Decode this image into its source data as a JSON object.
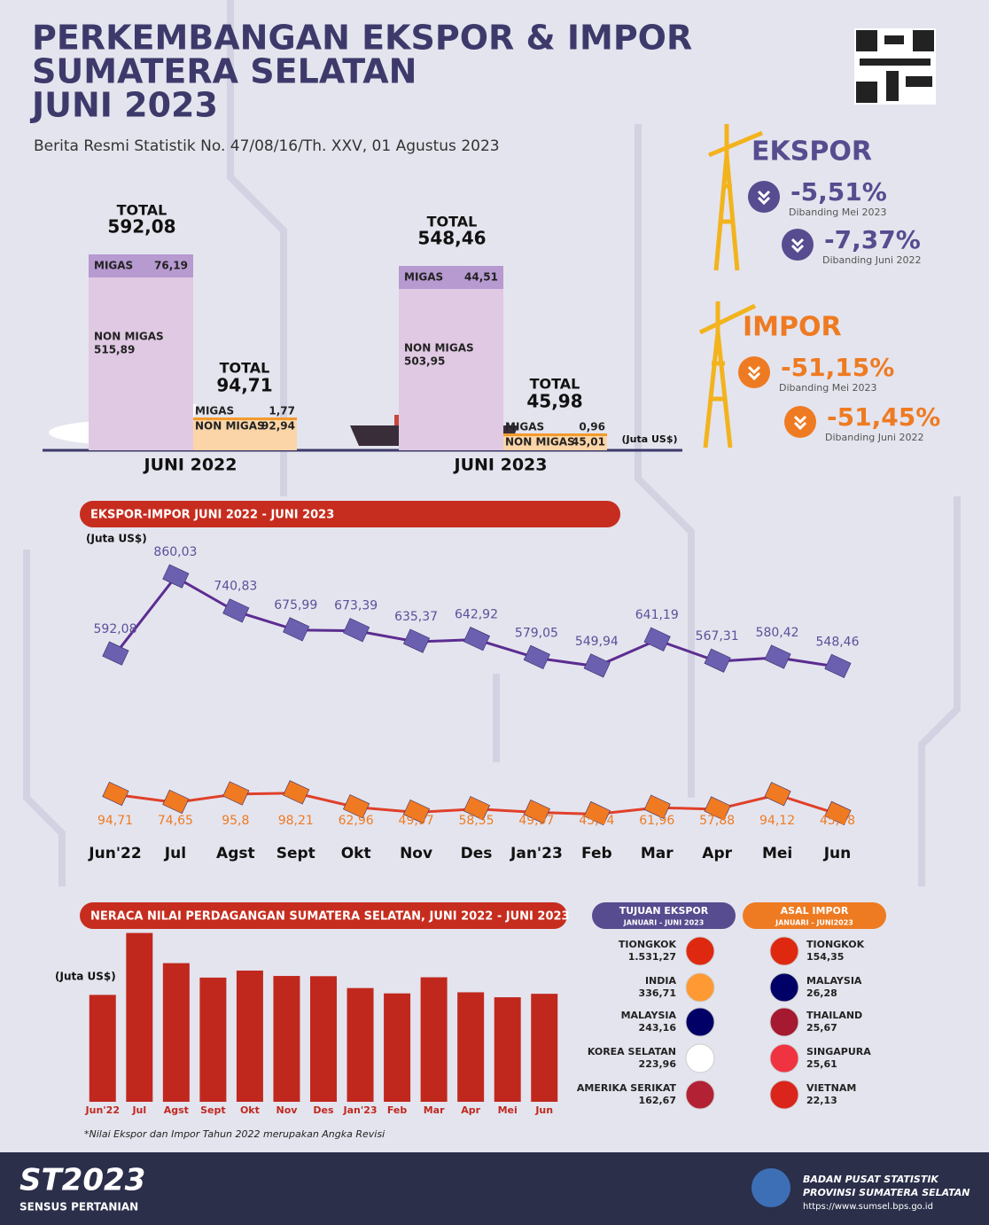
{
  "header": {
    "title": [
      "PERKEMBANGAN EKSPOR & IMPOR",
      "SUMATERA SELATAN",
      "JUNI 2023"
    ],
    "subtitle": "Berita Resmi Statistik No. 47/08/16/Th. XXV, 01 Agustus 2023"
  },
  "summary": {
    "labels": {
      "total": "TOTAL",
      "migas": "MIGAS",
      "nonmigas": "NON MIGAS"
    },
    "unit": "(Juta US$)",
    "periods": [
      {
        "label": "JUNI 2022",
        "ekspor": {
          "total": "592,08",
          "migas": "76,19",
          "nonmigas": "515,89"
        },
        "impor": {
          "total": "94,71",
          "migas": "1,77",
          "nonmigas": "92,94"
        }
      },
      {
        "label": "JUNI 2023",
        "ekspor": {
          "total": "548,46",
          "migas": "44,51",
          "nonmigas": "503,95"
        },
        "impor": {
          "total": "45,98",
          "migas": "0,96",
          "nonmigas": "45,01"
        }
      }
    ]
  },
  "changes": [
    {
      "title": "EKSPOR",
      "color": "#564c8f",
      "items": [
        {
          "value": "-5,51%",
          "note": "Dibanding Mei 2023"
        },
        {
          "value": "-7,37%",
          "note": "Dibanding Juni 2022"
        }
      ]
    },
    {
      "title": "IMPOR",
      "color": "#ee7b22",
      "items": [
        {
          "value": "-51,15%",
          "note": "Dibanding Mei 2023"
        },
        {
          "value": "-51,45%",
          "note": "Dibanding Juni 2022"
        }
      ]
    }
  ],
  "chart_data": [
    {
      "type": "line",
      "title": "EKSPOR-IMPOR JUNI 2022 - JUNI 2023",
      "y_label": "(Juta US$)",
      "categories": [
        "Jun'22",
        "Jul",
        "Agst",
        "Sept",
        "Okt",
        "Nov",
        "Des",
        "Jan'23",
        "Feb",
        "Mar",
        "Apr",
        "Mei",
        "Jun"
      ],
      "series": [
        {
          "color": "#5c2d91",
          "ylim": [
            500,
            900
          ],
          "values": [
            592.08,
            860.03,
            740.83,
            675.99,
            673.39,
            635.37,
            642.92,
            579.05,
            549.94,
            641.19,
            567.31,
            580.42,
            548.46
          ],
          "value_labels": [
            "592,08",
            "860,03",
            "740,83",
            "675,99",
            "673,39",
            "635,37",
            "642,92",
            "579,05",
            "549,94",
            "641,19",
            "567,31",
            "580,42",
            "548,46"
          ]
        },
        {
          "color": "#e0402a",
          "ylim": [
            40,
            100
          ],
          "values": [
            94.71,
            74.65,
            95.8,
            98.21,
            62.96,
            49.97,
            58.55,
            49.97,
            45.64,
            61.96,
            57.88,
            94.12,
            45.98
          ],
          "value_labels": [
            "94,71",
            "74,65",
            "95,8",
            "98,21",
            "62,96",
            "49,97",
            "58,55",
            "49,97",
            "45,64",
            "61,96",
            "57,88",
            "94,12",
            "45,98"
          ]
        }
      ]
    },
    {
      "type": "bar",
      "title": "NERACA NILAI PERDAGANGAN SUMATERA SELATAN, JUNI 2022 - JUNI 2023",
      "y_label": "(Juta US$)",
      "categories": [
        "Jun'22",
        "Jul",
        "Agst",
        "Sept",
        "Okt",
        "Nov",
        "Des",
        "Jan'23",
        "Feb",
        "Mar",
        "Apr",
        "Mei",
        "Jun"
      ],
      "values": [
        497.37,
        785.38,
        645.03,
        577.78,
        610.43,
        585.4,
        584.37,
        529.08,
        504.3,
        579.23,
        509.43,
        486.3,
        502.48
      ],
      "color": "#c0281e",
      "ylim": [
        0,
        800
      ]
    }
  ],
  "partners": [
    {
      "title": "TUJUAN EKSPOR",
      "period": "JANUARI - JUNI 2023",
      "color": "#564c8f",
      "countries": [
        {
          "name": "TIONGKOK",
          "value": "1.531,27"
        },
        {
          "name": "INDIA",
          "value": "336,71"
        },
        {
          "name": "MALAYSIA",
          "value": "243,16"
        },
        {
          "name": "KOREA SELATAN",
          "value": "223,96"
        },
        {
          "name": "AMERIKA SERIKAT",
          "value": "162,67"
        }
      ]
    },
    {
      "title": "ASAL IMPOR",
      "period": "JANUARI - JUNI2023",
      "color": "#ee7b22",
      "countries": [
        {
          "name": "TIONGKOK",
          "value": "154,35"
        },
        {
          "name": "MALAYSIA",
          "value": "26,28"
        },
        {
          "name": "THAILAND",
          "value": "25,67"
        },
        {
          "name": "SINGAPURA",
          "value": "25,61"
        },
        {
          "name": "VIETNAM",
          "value": "22,13"
        }
      ]
    }
  ],
  "footnote": "*Nilai Ekspor dan Impor Tahun 2022 merupakan Angka Revisi",
  "footer": {
    "logo": "ST2023",
    "logo_sub": "SENSUS PERTANIAN",
    "org": "BADAN PUSAT STATISTIK",
    "region": "PROVINSI SUMATERA SELATAN",
    "url": "https://www.sumsel.bps.go.id"
  }
}
